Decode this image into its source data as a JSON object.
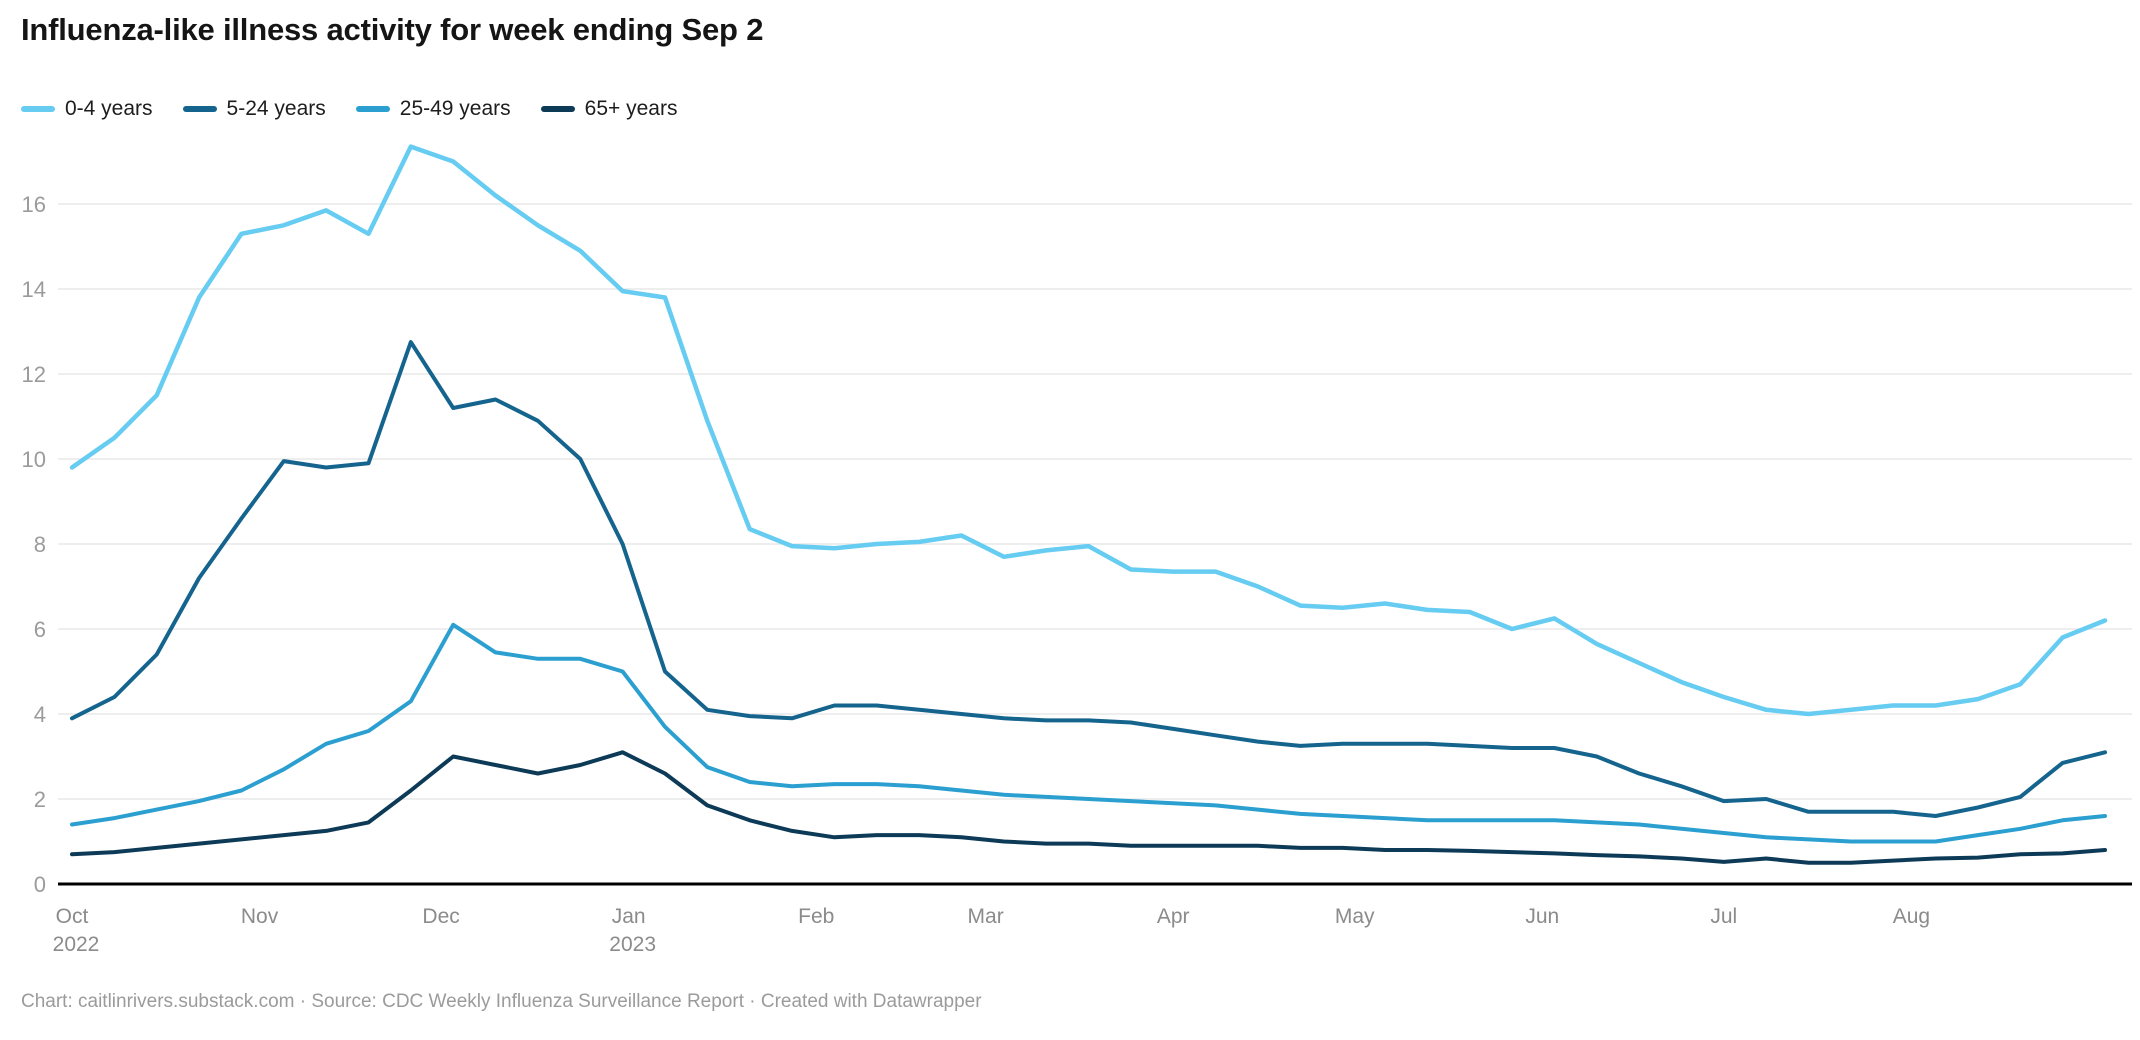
{
  "header": {
    "title": "Influenza-like illness activity for week ending Sep 2"
  },
  "legend": {
    "items": [
      {
        "label": "0-4 years",
        "color": "#66ccf1"
      },
      {
        "label": "5-24 years",
        "color": "#15648e"
      },
      {
        "label": "25-49 years",
        "color": "#2b9fd0"
      },
      {
        "label": "65+ years",
        "color": "#0d3a57"
      }
    ]
  },
  "chart_data": {
    "type": "line",
    "title": "Influenza-like illness activity for week ending Sep 2",
    "xlabel": "",
    "ylabel": "",
    "ylim": [
      0,
      17.5
    ],
    "grid": true,
    "legend_position": "top",
    "y_ticks": [
      0,
      2,
      4,
      6,
      8,
      10,
      12,
      14,
      16
    ],
    "x_months": [
      {
        "label": "Oct",
        "sublabel": "2022",
        "day": 0
      },
      {
        "label": "Nov",
        "day": 31
      },
      {
        "label": "Dec",
        "day": 61
      },
      {
        "label": "Jan",
        "sublabel": "2023",
        "day": 92
      },
      {
        "label": "Feb",
        "day": 123
      },
      {
        "label": "Mar",
        "day": 151
      },
      {
        "label": "Apr",
        "day": 182
      },
      {
        "label": "May",
        "day": 212
      },
      {
        "label": "Jun",
        "day": 243
      },
      {
        "label": "Jul",
        "day": 273
      },
      {
        "label": "Aug",
        "day": 304
      }
    ],
    "weeks": [
      "Oct 1",
      "Oct 8",
      "Oct 15",
      "Oct 22",
      "Oct 29",
      "Nov 5",
      "Nov 12",
      "Nov 19",
      "Nov 26",
      "Dec 3",
      "Dec 10",
      "Dec 17",
      "Dec 24",
      "Dec 31",
      "Jan 7",
      "Jan 14",
      "Jan 21",
      "Jan 28",
      "Feb 4",
      "Feb 11",
      "Feb 18",
      "Feb 25",
      "Mar 4",
      "Mar 11",
      "Mar 18",
      "Mar 25",
      "Apr 1",
      "Apr 8",
      "Apr 15",
      "Apr 22",
      "Apr 29",
      "May 6",
      "May 13",
      "May 20",
      "May 27",
      "Jun 3",
      "Jun 10",
      "Jun 17",
      "Jun 24",
      "Jul 1",
      "Jul 8",
      "Jul 15",
      "Jul 22",
      "Jul 29",
      "Aug 5",
      "Aug 12",
      "Aug 19",
      "Aug 26",
      "Sep 2"
    ],
    "series": [
      {
        "name": "0-4 years",
        "color": "#66ccf1",
        "stroke_width": 4.5,
        "values": [
          9.8,
          10.5,
          11.5,
          13.8,
          15.3,
          15.5,
          15.85,
          15.3,
          17.35,
          17.0,
          16.2,
          15.5,
          14.9,
          13.95,
          13.8,
          10.9,
          8.35,
          7.95,
          7.9,
          8.0,
          8.05,
          8.2,
          7.7,
          7.85,
          7.95,
          7.4,
          7.35,
          7.35,
          7.0,
          6.55,
          6.5,
          6.6,
          6.45,
          6.4,
          6.0,
          6.25,
          5.65,
          5.2,
          4.75,
          4.4,
          4.1,
          4.0,
          4.1,
          4.2,
          4.2,
          4.35,
          4.7,
          5.8,
          6.2
        ]
      },
      {
        "name": "5-24 years",
        "color": "#15648e",
        "stroke_width": 4,
        "values": [
          3.9,
          4.4,
          5.4,
          7.2,
          8.6,
          9.95,
          9.8,
          9.9,
          12.75,
          11.2,
          11.4,
          10.9,
          10.0,
          8.0,
          5.0,
          4.1,
          3.95,
          3.9,
          4.2,
          4.2,
          4.1,
          4.0,
          3.9,
          3.85,
          3.85,
          3.8,
          3.65,
          3.5,
          3.35,
          3.25,
          3.3,
          3.3,
          3.3,
          3.25,
          3.2,
          3.2,
          3.0,
          2.6,
          2.3,
          1.95,
          2.0,
          1.7,
          1.7,
          1.7,
          1.6,
          1.8,
          2.05,
          2.85,
          3.1
        ]
      },
      {
        "name": "25-49 years",
        "color": "#2b9fd0",
        "stroke_width": 4,
        "values": [
          1.4,
          1.55,
          1.75,
          1.95,
          2.2,
          2.7,
          3.3,
          3.6,
          4.3,
          6.1,
          5.45,
          5.3,
          5.3,
          5.0,
          3.7,
          2.75,
          2.4,
          2.3,
          2.35,
          2.35,
          2.3,
          2.2,
          2.1,
          2.05,
          2.0,
          1.95,
          1.9,
          1.85,
          1.75,
          1.65,
          1.6,
          1.55,
          1.5,
          1.5,
          1.5,
          1.5,
          1.45,
          1.4,
          1.3,
          1.2,
          1.1,
          1.05,
          1.0,
          1.0,
          1.0,
          1.15,
          1.3,
          1.5,
          1.6
        ]
      },
      {
        "name": "65+ years",
        "color": "#0d3a57",
        "stroke_width": 4,
        "values": [
          0.7,
          0.75,
          0.85,
          0.95,
          1.05,
          1.15,
          1.25,
          1.45,
          2.2,
          3.0,
          2.8,
          2.6,
          2.8,
          3.1,
          2.6,
          1.85,
          1.5,
          1.25,
          1.1,
          1.15,
          1.15,
          1.1,
          1.0,
          0.95,
          0.95,
          0.9,
          0.9,
          0.9,
          0.9,
          0.85,
          0.85,
          0.8,
          0.8,
          0.78,
          0.75,
          0.72,
          0.68,
          0.65,
          0.6,
          0.52,
          0.6,
          0.5,
          0.5,
          0.55,
          0.6,
          0.62,
          0.7,
          0.72,
          0.8
        ]
      }
    ]
  },
  "footer": {
    "text": "Chart: caitlinrivers.substack.com · Source: CDC Weekly Influenza Surveillance Report · Created with Datawrapper"
  }
}
